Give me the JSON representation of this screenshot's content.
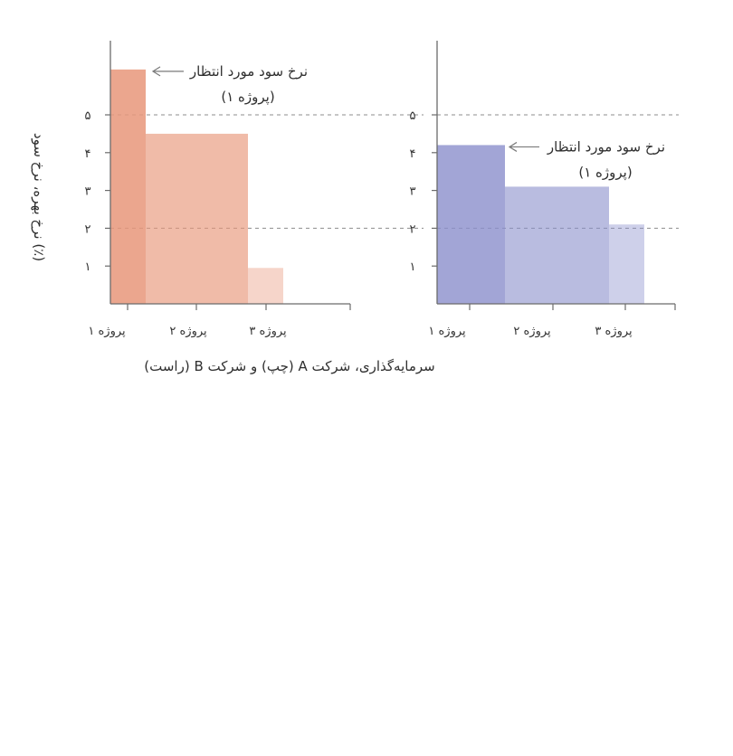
{
  "chart_data": [
    {
      "type": "bar",
      "panel": "left",
      "color": "#E8967A",
      "categories": [
        "پروژه ۱",
        "پروژه ۲",
        "پروژه ۳"
      ],
      "values": [
        6.2,
        4.5,
        0.95
      ],
      "opacity": [
        0.85,
        0.65,
        0.4
      ],
      "ylim": [
        0,
        7
      ],
      "yticks": [
        1,
        2,
        3,
        4,
        5
      ],
      "ytick_labels": [
        "۱",
        "۲",
        "۳",
        "۴",
        "۵"
      ],
      "ylabel": "نرخ بهره، نرخ سود (٪)",
      "reference_lines": [
        5,
        2
      ],
      "annotation": {
        "line1": "نرخ سود مورد انتظار",
        "line2": "(پروژه ۱)",
        "target_value": 6.2
      }
    },
    {
      "type": "bar",
      "panel": "right",
      "color": "#8B8FCC",
      "categories": [
        "پروژه ۱",
        "پروژه ۲",
        "پروژه ۳"
      ],
      "values": [
        4.2,
        3.1,
        2.1
      ],
      "opacity": [
        0.8,
        0.6,
        0.42
      ],
      "ylim": [
        0,
        7
      ],
      "yticks": [
        1,
        2,
        3,
        4,
        5
      ],
      "ytick_labels": [
        "۱",
        "۲",
        "۳",
        "۴",
        "۵"
      ],
      "reference_lines": [
        5,
        2
      ],
      "annotation": {
        "line1": "نرخ سود مورد انتظار",
        "line2": "(پروژه ۱)",
        "target_value": 4.2
      }
    }
  ],
  "xlabel": "سرمایه‌گذاری، شرکت A (چپ) و شرکت B (راست)"
}
